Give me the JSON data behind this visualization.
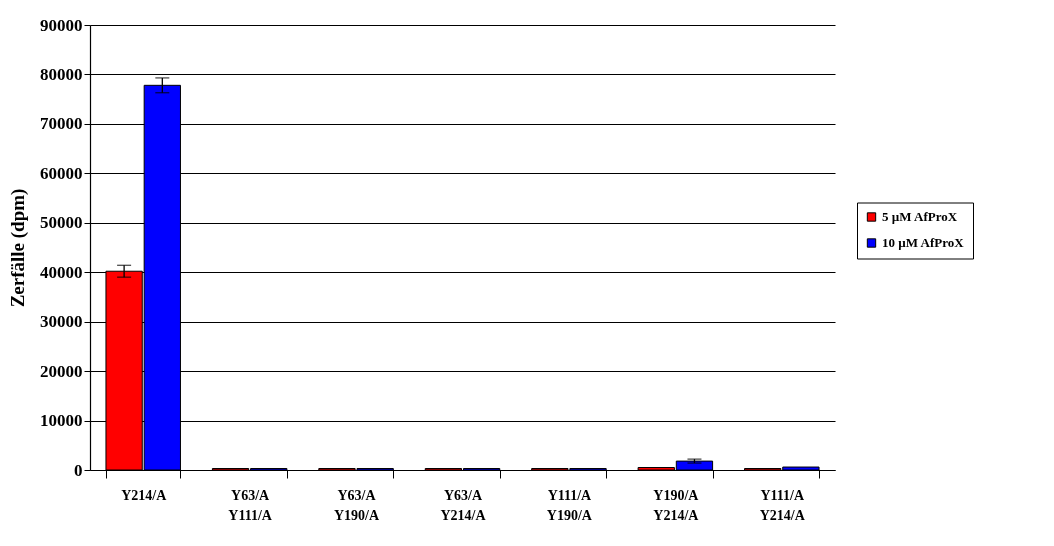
{
  "chart_data": {
    "type": "bar",
    "ylabel": "Zerfälle (dpm)",
    "categories": [
      "Y214/A",
      "Y63/A Y111/A",
      "Y63/A Y190/A",
      "Y63/A Y214/A",
      "Y111/A Y190/A",
      "Y190/A Y214/A",
      "Y111/A Y214/A"
    ],
    "series": [
      {
        "name": "5 µM AfProX",
        "color": "#ff0000",
        "values": [
          40200,
          300,
          300,
          300,
          300,
          500,
          300
        ],
        "errors": [
          1200,
          null,
          null,
          null,
          null,
          null,
          null
        ]
      },
      {
        "name": "10 µM AfProX",
        "color": "#0000ff",
        "values": [
          77800,
          300,
          300,
          300,
          300,
          1800,
          600
        ],
        "errors": [
          1500,
          null,
          null,
          null,
          null,
          400,
          null
        ]
      }
    ],
    "ylim": [
      0,
      90000
    ],
    "yticks": [
      0,
      10000,
      20000,
      30000,
      40000,
      50000,
      60000,
      70000,
      80000,
      90000
    ],
    "grid": "y",
    "legend": "right"
  }
}
